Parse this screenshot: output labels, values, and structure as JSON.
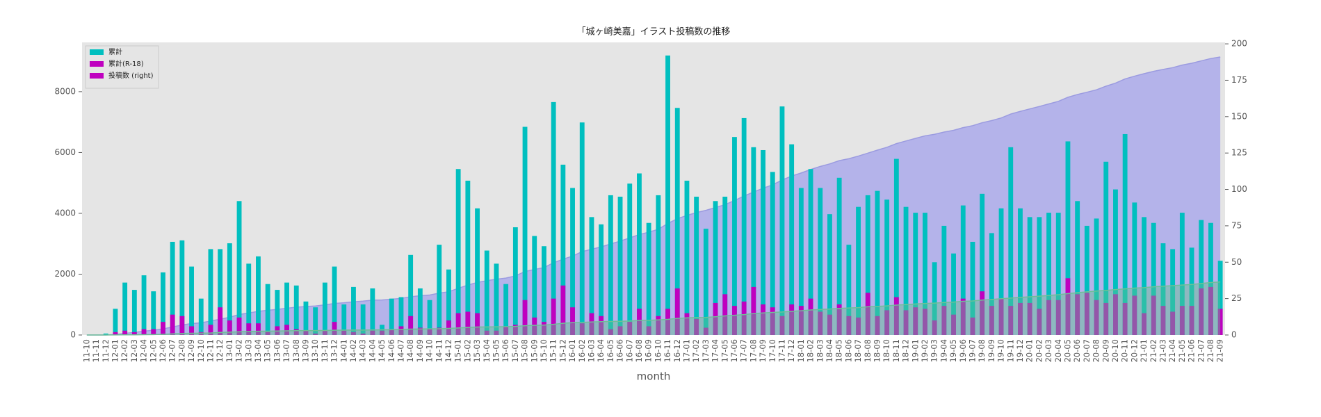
{
  "chart_data": {
    "type": "bar_area",
    "title": "「城ヶ崎美嘉」イラスト投稿数の推移",
    "xlabel": "month",
    "categories": [
      "11-10",
      "11-11",
      "11-12",
      "12-01",
      "12-02",
      "12-03",
      "12-04",
      "12-05",
      "12-06",
      "12-07",
      "12-08",
      "12-09",
      "12-10",
      "12-11",
      "12-12",
      "13-01",
      "13-02",
      "13-03",
      "13-04",
      "13-05",
      "13-06",
      "13-07",
      "13-08",
      "13-09",
      "13-10",
      "13-11",
      "13-12",
      "14-01",
      "14-02",
      "14-03",
      "14-04",
      "14-05",
      "14-06",
      "14-07",
      "14-08",
      "14-09",
      "14-10",
      "14-11",
      "14-12",
      "15-01",
      "15-02",
      "15-03",
      "15-04",
      "15-05",
      "15-06",
      "15-07",
      "15-08",
      "15-09",
      "15-10",
      "15-11",
      "15-12",
      "16-01",
      "16-02",
      "16-03",
      "16-04",
      "16-05",
      "16-06",
      "16-07",
      "16-08",
      "16-09",
      "16-10",
      "16-11",
      "16-12",
      "17-01",
      "17-02",
      "17-03",
      "17-04",
      "17-05",
      "17-06",
      "17-07",
      "17-08",
      "17-09",
      "17-10",
      "17-11",
      "17-12",
      "18-01",
      "18-02",
      "18-03",
      "18-04",
      "18-05",
      "18-06",
      "18-07",
      "18-08",
      "18-09",
      "18-10",
      "18-11",
      "18-12",
      "19-01",
      "19-02",
      "19-03",
      "19-04",
      "19-05",
      "19-06",
      "19-07",
      "19-08",
      "19-09",
      "19-10",
      "19-11",
      "19-12",
      "20-01",
      "20-02",
      "20-03",
      "20-04",
      "20-05",
      "20-06",
      "20-07",
      "20-08",
      "20-09",
      "20-10",
      "20-11",
      "20-12",
      "21-01",
      "21-02",
      "21-03",
      "21-04",
      "21-05",
      "21-06",
      "21-07",
      "21-08",
      "21-09"
    ],
    "series": [
      {
        "name": "累計",
        "kind": "area",
        "color": "#b4b3ea",
        "line_color": "#9b9be0",
        "values": [
          0,
          0,
          1,
          19,
          55,
          86,
          127,
          157,
          200,
          264,
          329,
          376,
          401,
          460,
          519,
          582,
          674,
          723,
          777,
          812,
          843,
          879,
          913,
          936,
          955,
          991,
          1038,
          1059,
          1092,
          1113,
          1145,
          1152,
          1177,
          1203,
          1258,
          1290,
          1314,
          1376,
          1421,
          1535,
          1641,
          1728,
          1786,
          1835,
          1870,
          1944,
          2087,
          2155,
          2216,
          2376,
          2493,
          2594,
          2740,
          2821,
          2897,
          2993,
          3088,
          3192,
          3303,
          3380,
          3476,
          3668,
          3824,
          3930,
          4025,
          4098,
          4190,
          4285,
          4421,
          4570,
          4699,
          4826,
          4938,
          5095,
          5226,
          5327,
          5441,
          5542,
          5625,
          5733,
          5795,
          5883,
          5979,
          6078,
          6171,
          6292,
          6380,
          6464,
          6548,
          6598,
          6673,
          6729,
          6818,
          6882,
          6979,
          7049,
          7136,
          7265,
          7352,
          7433,
          7514,
          7598,
          7682,
          7815,
          7907,
          7982,
          8062,
          8181,
          8281,
          8419,
          8510,
          8591,
          8668,
          8731,
          8790,
          8874,
          8934,
          9013,
          9090,
          9141
        ]
      },
      {
        "name": "累計(R-18)",
        "kind": "area",
        "color": "#5fbf8f",
        "line_color": "#6fbf97",
        "values": [
          0,
          0,
          0,
          2,
          5,
          7,
          11,
          15,
          24,
          38,
          51,
          57,
          59,
          66,
          85,
          95,
          107,
          115,
          123,
          125,
          131,
          138,
          142,
          145,
          146,
          149,
          158,
          161,
          163,
          164,
          167,
          170,
          174,
          180,
          193,
          198,
          202,
          207,
          217,
          232,
          248,
          263,
          266,
          269,
          275,
          282,
          306,
          318,
          327,
          352,
          386,
          405,
          413,
          428,
          441,
          445,
          451,
          460,
          478,
          484,
          497,
          515,
          547,
          562,
          573,
          578,
          600,
          628,
          648,
          671,
          704,
          725,
          744,
          757,
          778,
          798,
          823,
          839,
          853,
          874,
          887,
          899,
          928,
          941,
          958,
          984,
          1001,
          1020,
          1038,
          1048,
          1068,
          1082,
          1107,
          1119,
          1149,
          1169,
          1194,
          1214,
          1236,
          1258,
          1276,
          1300,
          1324,
          1363,
          1391,
          1420,
          1444,
          1466,
          1494,
          1516,
          1543,
          1558,
          1585,
          1605,
          1621,
          1641,
          1661,
          1693,
          1726,
          1744
        ]
      },
      {
        "name": "投稿数 (right)",
        "kind": "bar",
        "axis": "y2",
        "color": "#00bfbf",
        "values": [
          0,
          0,
          1,
          18,
          36,
          31,
          41,
          30,
          43,
          64,
          65,
          47,
          25,
          59,
          59,
          63,
          92,
          49,
          54,
          35,
          31,
          36,
          34,
          23,
          19,
          36,
          47,
          21,
          33,
          21,
          32,
          7,
          25,
          26,
          55,
          32,
          24,
          62,
          45,
          114,
          106,
          87,
          58,
          49,
          35,
          74,
          143,
          68,
          61,
          160,
          117,
          101,
          146,
          81,
          76,
          96,
          95,
          104,
          111,
          77,
          96,
          192,
          156,
          106,
          95,
          73,
          92,
          95,
          136,
          149,
          129,
          127,
          112,
          157,
          131,
          101,
          114,
          101,
          83,
          108,
          62,
          88,
          96,
          99,
          93,
          121,
          88,
          84,
          84,
          50,
          75,
          56,
          89,
          64,
          97,
          70,
          87,
          129,
          87,
          81,
          81,
          84,
          84,
          133,
          92,
          75,
          80,
          119,
          100,
          138,
          91,
          81,
          77,
          63,
          59,
          84,
          60,
          79,
          77,
          51
        ]
      },
      {
        "kind": "bar",
        "axis": "y2",
        "color": "#bf00bf",
        "values": [
          0,
          0,
          0,
          2,
          3,
          2,
          4,
          4,
          9,
          14,
          13,
          6,
          2,
          7,
          19,
          10,
          12,
          8,
          8,
          2,
          6,
          7,
          4,
          3,
          1,
          3,
          9,
          3,
          2,
          1,
          3,
          3,
          4,
          6,
          13,
          5,
          4,
          5,
          10,
          15,
          16,
          15,
          3,
          3,
          6,
          7,
          24,
          12,
          9,
          25,
          34,
          19,
          8,
          15,
          13,
          4,
          6,
          9,
          18,
          6,
          13,
          18,
          32,
          15,
          11,
          5,
          22,
          28,
          20,
          23,
          33,
          21,
          19,
          13,
          21,
          20,
          25,
          16,
          14,
          21,
          13,
          12,
          29,
          13,
          17,
          26,
          17,
          19,
          18,
          10,
          20,
          14,
          25,
          12,
          30,
          20,
          25,
          20,
          22,
          22,
          18,
          24,
          24,
          39,
          28,
          29,
          24,
          22,
          28,
          22,
          27,
          15,
          27,
          20,
          16,
          20,
          20,
          32,
          33,
          18
        ]
      }
    ],
    "legend": {
      "loc": "upper left",
      "colors": [
        "#00bfbf",
        "#bf00bf",
        "#bf00bf"
      ]
    },
    "ylim": [
      0,
      9620
    ],
    "yticks": [
      0,
      2000,
      4000,
      6000,
      8000
    ],
    "y2lim": [
      0,
      201
    ],
    "y2ticks": [
      0,
      25,
      50,
      75,
      100,
      125,
      150,
      175,
      200
    ],
    "background": "#e5e5e5",
    "grid": false
  }
}
